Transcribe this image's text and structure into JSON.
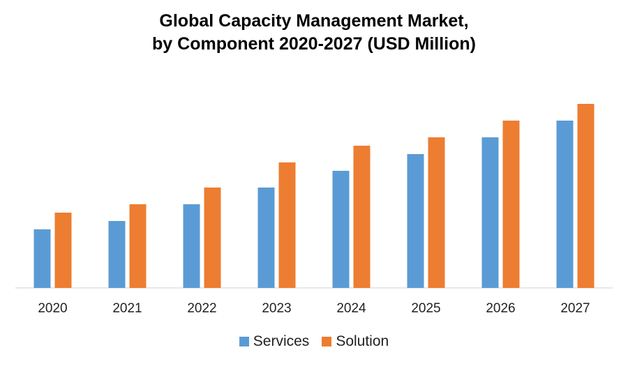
{
  "chart_data": {
    "type": "bar",
    "title": "Global Capacity Management Market,",
    "subtitle": "by Component 2020-2027 (USD Million)",
    "xlabel": "",
    "ylabel": "",
    "categories": [
      "2020",
      "2021",
      "2022",
      "2023",
      "2024",
      "2025",
      "2026",
      "2027"
    ],
    "series": [
      {
        "name": "Services",
        "color": "#5B9BD5",
        "values": [
          7,
          8,
          10,
          12,
          14,
          16,
          18,
          20
        ]
      },
      {
        "name": "Solution",
        "color": "#ED7D31",
        "values": [
          9,
          10,
          12,
          15,
          17,
          18,
          20,
          22
        ]
      }
    ],
    "ylim": [
      0,
      22
    ],
    "y_axis_shown": false,
    "values_note": "relative values; no y-axis scale shown",
    "grid": false,
    "legend": "bottom"
  }
}
